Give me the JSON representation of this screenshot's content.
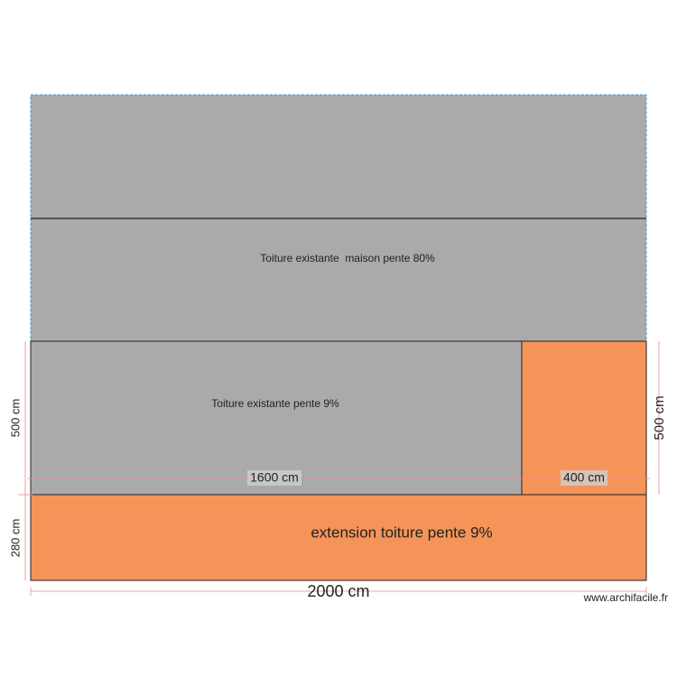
{
  "plan": {
    "rooms": [
      {
        "label": "Toiture existante  maison pente 80%"
      },
      {
        "label": "Toiture existante pente 9%"
      },
      {
        "label": "extension toiture pente 9%"
      }
    ],
    "dimensions": {
      "left_upper": "500 cm",
      "right_upper": "500 cm",
      "left_lower": "280 cm",
      "width_left": "1600 cm",
      "width_right": "400 cm",
      "width_total": "2000 cm"
    },
    "watermark": "www.archifacile.fr"
  }
}
